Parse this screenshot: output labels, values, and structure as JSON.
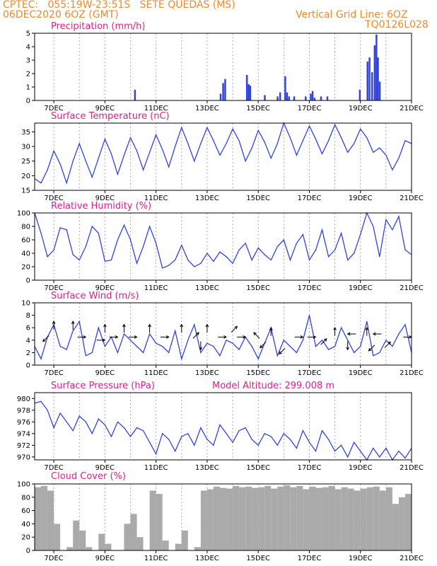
{
  "header": {
    "line1": "CPTEC:   055:19W-23:51S   SETE QUEDAS (MS)",
    "line2": "06DEC2020 6OZ (GMT)",
    "right1": "Vertical Grid Line: 6OZ",
    "right2": "TQ0126L028"
  },
  "x_ticks": [
    "7DEC",
    "9DEC",
    "11DEC",
    "13DEC",
    "15DEC",
    "17DEC",
    "19DEC",
    "21DEC"
  ],
  "colors": {
    "line": "#3344dd",
    "cloud": "#aaaaaa",
    "title": "#e0208a",
    "header": "#f08a2a"
  },
  "chart_data": [
    {
      "type": "bar",
      "title": "Precipitation (mm/h)",
      "xlim": [
        6.25,
        21.0
      ],
      "ylim": [
        0,
        5
      ],
      "yticks": [
        "0",
        "1",
        "2",
        "3",
        "4",
        "5"
      ],
      "x": [
        10.17,
        13.52,
        13.62,
        13.7,
        14.55,
        14.62,
        14.68,
        15.25,
        15.75,
        15.85,
        16.05,
        16.12,
        16.2,
        16.4,
        16.85,
        17.05,
        17.12,
        17.2,
        17.45,
        17.7,
        18.97,
        19.27,
        19.35,
        19.45,
        19.55,
        19.62,
        19.68,
        19.75
      ],
      "values": [
        0.8,
        0.5,
        1.3,
        1.6,
        1.9,
        1.2,
        1.1,
        0.4,
        0.3,
        0.6,
        1.8,
        0.6,
        0.3,
        0.3,
        0.3,
        0.5,
        0.7,
        0.2,
        0.3,
        0.3,
        0.8,
        2.9,
        3.2,
        2.1,
        4.1,
        4.9,
        3.2,
        1.4
      ]
    },
    {
      "type": "line",
      "title": "Surface Temperature (nC)",
      "xlim": [
        6.25,
        21.0
      ],
      "ylim": [
        15,
        38
      ],
      "yticks": [
        "15",
        "20",
        "25",
        "30",
        "35"
      ],
      "x": [
        6.25,
        6.5,
        6.75,
        7.0,
        7.25,
        7.5,
        7.75,
        8.0,
        8.25,
        8.5,
        8.75,
        9.0,
        9.25,
        9.5,
        9.75,
        10.0,
        10.25,
        10.5,
        10.75,
        11.0,
        11.25,
        11.5,
        11.75,
        12.0,
        12.25,
        12.5,
        12.75,
        13.0,
        13.25,
        13.5,
        13.75,
        14.0,
        14.25,
        14.5,
        14.75,
        15.0,
        15.25,
        15.5,
        15.75,
        16.0,
        16.25,
        16.5,
        16.75,
        17.0,
        17.25,
        17.5,
        17.75,
        18.0,
        18.25,
        18.5,
        18.75,
        19.0,
        19.25,
        19.5,
        19.75,
        20.0,
        20.25,
        20.5,
        20.75,
        21.0
      ],
      "values": [
        19,
        17.5,
        22,
        28.5,
        24,
        17.5,
        25,
        31,
        25,
        19.5,
        26,
        32.5,
        27.5,
        20.5,
        27,
        33,
        28.5,
        22,
        28,
        34,
        29,
        23,
        30,
        36.5,
        31,
        25,
        31,
        36.5,
        32,
        27,
        31,
        36,
        32,
        25,
        29.5,
        35.5,
        31.5,
        26,
        31,
        38,
        33,
        27,
        32,
        37,
        32.5,
        27.5,
        32,
        37.5,
        33,
        28,
        31,
        36,
        33,
        28,
        29.5,
        27,
        22,
        26,
        32,
        31
      ]
    },
    {
      "type": "line",
      "title": "Relative Humidity (%)",
      "xlim": [
        6.25,
        21.0
      ],
      "ylim": [
        0,
        100
      ],
      "yticks": [
        "0",
        "20",
        "40",
        "60",
        "80",
        "100"
      ],
      "x": [
        6.25,
        6.5,
        6.75,
        7.0,
        7.25,
        7.5,
        7.75,
        8.0,
        8.25,
        8.5,
        8.75,
        9.0,
        9.25,
        9.5,
        9.75,
        10.0,
        10.25,
        10.5,
        10.75,
        11.0,
        11.25,
        11.5,
        11.75,
        12.0,
        12.25,
        12.5,
        12.75,
        13.0,
        13.25,
        13.5,
        13.75,
        14.0,
        14.25,
        14.5,
        14.75,
        15.0,
        15.25,
        15.5,
        15.75,
        16.0,
        16.25,
        16.5,
        16.75,
        17.0,
        17.25,
        17.5,
        17.75,
        18.0,
        18.25,
        18.5,
        18.75,
        19.0,
        19.25,
        19.5,
        19.75,
        20.0,
        20.25,
        20.5,
        20.75,
        21.0
      ],
      "values": [
        100,
        70,
        35,
        45,
        78,
        75,
        38,
        30,
        50,
        80,
        70,
        28,
        30,
        60,
        82,
        60,
        25,
        50,
        80,
        55,
        18,
        22,
        30,
        52,
        30,
        20,
        25,
        40,
        28,
        42,
        35,
        25,
        45,
        55,
        30,
        48,
        38,
        30,
        50,
        60,
        30,
        55,
        68,
        30,
        45,
        75,
        35,
        45,
        70,
        30,
        40,
        68,
        100,
        80,
        35,
        90,
        75,
        95,
        45,
        38
      ]
    },
    {
      "type": "line",
      "title": "Surface Wind (m/s)",
      "xlim": [
        6.25,
        21.0
      ],
      "ylim": [
        0,
        10
      ],
      "yticks": [
        "0",
        "2",
        "4",
        "6",
        "8",
        "10"
      ],
      "x": [
        6.25,
        6.5,
        6.75,
        7.0,
        7.25,
        7.5,
        7.75,
        8.0,
        8.25,
        8.5,
        8.75,
        9.0,
        9.25,
        9.5,
        9.75,
        10.0,
        10.25,
        10.5,
        10.75,
        11.0,
        11.25,
        11.5,
        11.75,
        12.0,
        12.25,
        12.5,
        12.75,
        13.0,
        13.25,
        13.5,
        13.75,
        14.0,
        14.25,
        14.5,
        14.75,
        15.0,
        15.25,
        15.5,
        15.75,
        16.0,
        16.25,
        16.5,
        16.75,
        17.0,
        17.25,
        17.5,
        17.75,
        18.0,
        18.25,
        18.5,
        18.75,
        19.0,
        19.25,
        19.5,
        19.75,
        20.0,
        20.25,
        20.5,
        20.75,
        21.0
      ],
      "values": [
        3,
        1,
        4.5,
        6.5,
        3,
        2.5,
        5.5,
        7,
        1.5,
        2,
        6,
        3,
        4.5,
        2,
        5,
        4,
        3,
        2,
        5,
        3.5,
        3,
        2,
        5.5,
        1,
        4,
        6.5,
        2,
        3.5,
        3,
        1.5,
        4,
        3.5,
        2.5,
        4.5,
        3,
        1,
        3.5,
        6,
        1.5,
        4,
        3,
        2,
        4,
        8,
        3,
        4,
        2.5,
        3,
        6,
        4,
        2,
        3,
        7,
        1.5,
        2,
        4,
        3,
        5,
        6.5,
        2
      ]
    },
    {
      "type": "line",
      "title": "Surface Pressure (hPa)",
      "subtitle": "Model Altitude: 299.008 m",
      "xlim": [
        6.25,
        21.0
      ],
      "ylim": [
        969.5,
        981
      ],
      "yticks": [
        "970",
        "972",
        "974",
        "976",
        "978",
        "980"
      ],
      "x": [
        6.25,
        6.5,
        6.75,
        7.0,
        7.25,
        7.5,
        7.75,
        8.0,
        8.25,
        8.5,
        8.75,
        9.0,
        9.25,
        9.5,
        9.75,
        10.0,
        10.25,
        10.5,
        10.75,
        11.0,
        11.25,
        11.5,
        11.75,
        12.0,
        12.25,
        12.5,
        12.75,
        13.0,
        13.25,
        13.5,
        13.75,
        14.0,
        14.25,
        14.5,
        14.75,
        15.0,
        15.25,
        15.5,
        15.75,
        16.0,
        16.25,
        16.5,
        16.75,
        17.0,
        17.25,
        17.5,
        17.75,
        18.0,
        18.25,
        18.5,
        18.75,
        19.0,
        19.25,
        19.5,
        19.75,
        20.0,
        20.25,
        20.5,
        20.75,
        21.0
      ],
      "values": [
        979.2,
        979.5,
        978,
        975,
        977.5,
        976,
        974.5,
        977,
        976,
        974,
        976.5,
        975.5,
        973.5,
        976,
        975,
        973.5,
        975,
        974.5,
        972.5,
        970.5,
        974,
        973,
        971,
        973.5,
        974,
        972,
        975,
        973,
        972,
        975.5,
        974,
        972.5,
        974.5,
        975,
        973,
        972,
        974,
        973.5,
        972,
        974,
        973,
        971.5,
        974.5,
        972.5,
        971,
        974.5,
        973,
        971,
        972,
        970,
        972.5,
        971,
        969.5,
        971.5,
        970,
        971.5,
        969.5,
        971,
        969.8,
        971.5
      ]
    },
    {
      "type": "bar",
      "title": "Cloud Cover (%)",
      "xlim": [
        6.25,
        21.0
      ],
      "ylim": [
        0,
        100
      ],
      "yticks": [
        "0",
        "20",
        "40",
        "60",
        "80",
        "100"
      ],
      "x": [
        6.25,
        6.5,
        6.75,
        7.0,
        7.25,
        7.5,
        7.75,
        8.0,
        8.25,
        8.5,
        8.75,
        9.0,
        9.25,
        9.5,
        9.75,
        10.0,
        10.25,
        10.5,
        10.75,
        11.0,
        11.25,
        11.5,
        11.75,
        12.0,
        12.25,
        12.5,
        12.75,
        13.0,
        13.25,
        13.5,
        13.75,
        14.0,
        14.25,
        14.5,
        14.75,
        15.0,
        15.25,
        15.5,
        15.75,
        16.0,
        16.25,
        16.5,
        16.75,
        17.0,
        17.25,
        17.5,
        17.75,
        18.0,
        18.25,
        18.5,
        18.75,
        19.0,
        19.25,
        19.5,
        19.75,
        20.0,
        20.25,
        20.5,
        20.75,
        21.0
      ],
      "values": [
        95,
        97,
        90,
        40,
        0,
        5,
        45,
        30,
        5,
        0,
        25,
        10,
        0,
        0,
        40,
        55,
        20,
        0,
        90,
        85,
        15,
        0,
        10,
        30,
        0,
        5,
        90,
        92,
        96,
        94,
        93,
        97,
        95,
        96,
        94,
        95,
        97,
        93,
        96,
        98,
        95,
        97,
        92,
        96,
        94,
        95,
        97,
        92,
        95,
        93,
        90,
        93,
        95,
        96,
        90,
        95,
        70,
        80,
        85,
        75
      ]
    }
  ],
  "wind_arrows": [
    {
      "x": 6.75,
      "y": 4.5,
      "dir": "sw"
    },
    {
      "x": 7.0,
      "y": 6.0,
      "dir": "n"
    },
    {
      "x": 7.75,
      "y": 6.0,
      "dir": "n"
    },
    {
      "x": 8.0,
      "y": 4.5,
      "dir": "e"
    },
    {
      "x": 8.75,
      "y": 4.0,
      "dir": "e"
    },
    {
      "x": 9.0,
      "y": 5.5,
      "dir": "n"
    },
    {
      "x": 9.25,
      "y": 4.5,
      "dir": "e"
    },
    {
      "x": 9.75,
      "y": 5.5,
      "dir": "n"
    },
    {
      "x": 10.0,
      "y": 4.5,
      "dir": "e"
    },
    {
      "x": 10.75,
      "y": 5.5,
      "dir": "n"
    },
    {
      "x": 11.25,
      "y": 4.5,
      "dir": "e"
    },
    {
      "x": 12.0,
      "y": 5.5,
      "dir": "n"
    },
    {
      "x": 12.5,
      "y": 4.5,
      "dir": "ne"
    },
    {
      "x": 12.75,
      "y": 3.5,
      "dir": "s"
    },
    {
      "x": 13.0,
      "y": 5.5,
      "dir": "n"
    },
    {
      "x": 13.5,
      "y": 4.5,
      "dir": "e"
    },
    {
      "x": 14.0,
      "y": 5.5,
      "dir": "ne"
    },
    {
      "x": 14.25,
      "y": 4.5,
      "dir": "e"
    },
    {
      "x": 15.0,
      "y": 4.5,
      "dir": "nw"
    },
    {
      "x": 15.25,
      "y": 3.5,
      "dir": "sw"
    },
    {
      "x": 15.5,
      "y": 5.0,
      "dir": "n"
    },
    {
      "x": 16.0,
      "y": 2.5,
      "dir": "sw"
    },
    {
      "x": 16.5,
      "y": 4.5,
      "dir": "e"
    },
    {
      "x": 17.0,
      "y": 4.5,
      "dir": "e"
    },
    {
      "x": 17.5,
      "y": 3.5,
      "dir": "ne"
    },
    {
      "x": 18.0,
      "y": 5.0,
      "dir": "n"
    },
    {
      "x": 18.5,
      "y": 3.5,
      "dir": "s"
    },
    {
      "x": 18.75,
      "y": 5.0,
      "dir": "w"
    },
    {
      "x": 19.25,
      "y": 5.0,
      "dir": "n"
    },
    {
      "x": 19.5,
      "y": 3.0,
      "dir": "sw"
    },
    {
      "x": 19.75,
      "y": 5.0,
      "dir": "w"
    },
    {
      "x": 20.0,
      "y": 3.0,
      "dir": "ne"
    },
    {
      "x": 20.75,
      "y": 4.5,
      "dir": "e"
    }
  ]
}
